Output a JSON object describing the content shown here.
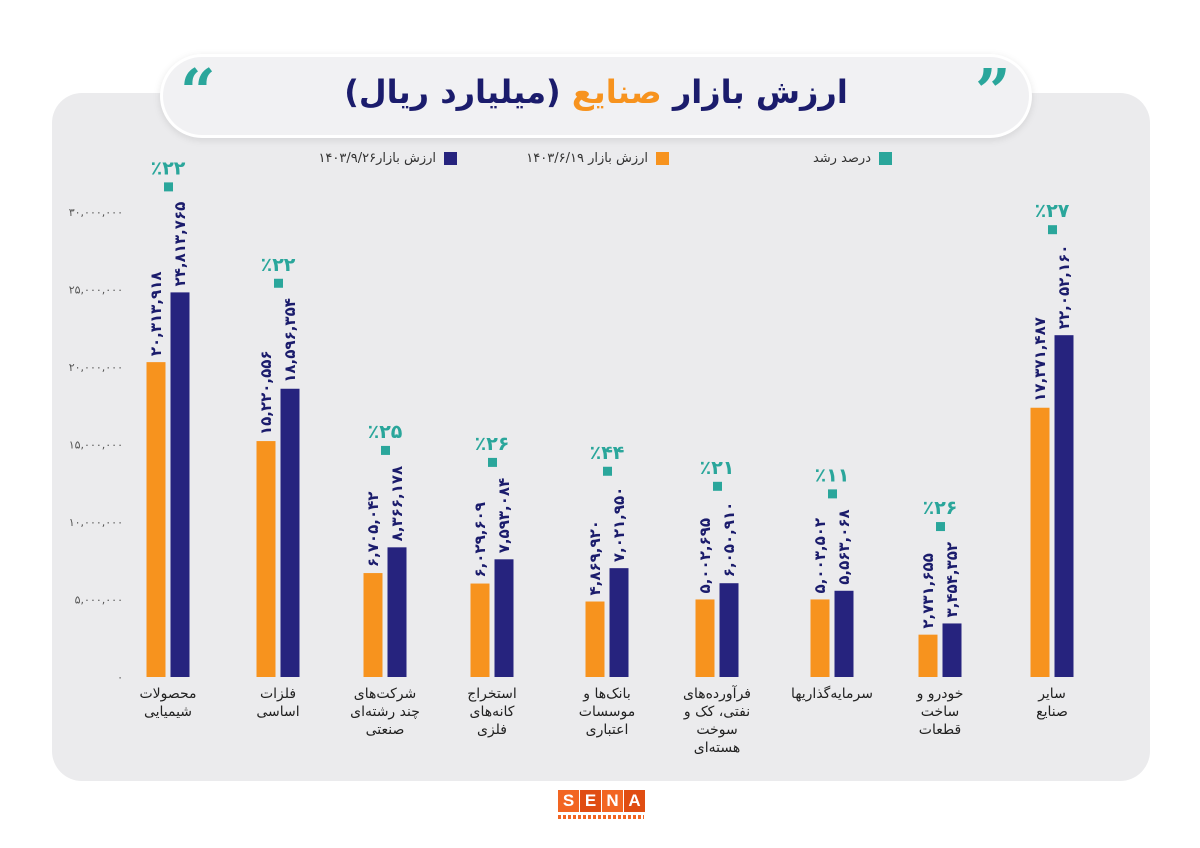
{
  "title": {
    "part1": "ارزش بازار",
    "part2": "صنایع",
    "part3": "(میلیارد ریال)"
  },
  "logo": {
    "text": "SENA",
    "letters": [
      "S",
      "E",
      "N",
      "A"
    ]
  },
  "colors": {
    "series1": "#f7931e",
    "series2": "#26237e",
    "growth": "#2aa69b",
    "title": "#1b1c6c"
  },
  "legend": {
    "growth": "درصد رشد",
    "series1": "ارزش بازار ۱۴۰۳/۶/۱۹",
    "series2": "ارزش بازار۱۴۰۳/۹/۲۶"
  },
  "chart_data": {
    "type": "bar",
    "ylim": [
      0,
      30000000
    ],
    "yticks": [
      0,
      5000000,
      10000000,
      15000000,
      20000000,
      25000000,
      30000000
    ],
    "ytick_labels": [
      "۰",
      "۵,۰۰۰,۰۰۰",
      "۱۰,۰۰۰,۰۰۰",
      "۱۵,۰۰۰,۰۰۰",
      "۲۰,۰۰۰,۰۰۰",
      "۲۵,۰۰۰,۰۰۰",
      "۳۰,۰۰۰,۰۰۰"
    ],
    "grid": false,
    "legend_position": "top",
    "categories": [
      [
        "محصولات",
        "شیمیایی"
      ],
      [
        "فلزات",
        "اساسی"
      ],
      [
        "شرکت‌های",
        "چند رشته‌ای",
        "صنعتی"
      ],
      [
        "استخراج",
        "کانه‌های",
        "فلزی"
      ],
      [
        "بانک‌ها و",
        "موسسات",
        "اعتباری"
      ],
      [
        "فرآورده‌های",
        "نفتی، کک و",
        "سوخت",
        "هسته‌ای"
      ],
      [
        "سرمایه‌گذاریها"
      ],
      [
        "خودرو و",
        "ساخت",
        "قطعات"
      ],
      [
        "سایر",
        "صنایع"
      ]
    ],
    "series": [
      {
        "name": "ارزش بازار ۱۴۰۳/۶/۱۹",
        "values": [
          20313918,
          15220556,
          6705042,
          6029609,
          4869920,
          5002695,
          5003502,
          2731655,
          17371487
        ],
        "labels": [
          "۲۰,۳۱۳,۹۱۸",
          "۱۵,۲۲۰,۵۵۶",
          "۶,۷۰۵,۰۴۲",
          "۶,۰۲۹,۶۰۹",
          "۴,۸۶۹,۹۲۰",
          "۵,۰۰۲,۶۹۵",
          "۵,۰۰۳,۵۰۲",
          "۲,۷۳۱,۶۵۵",
          "۱۷,۳۷۱,۴۸۷"
        ]
      },
      {
        "name": "ارزش بازار۱۴۰۳/۹/۲۶",
        "values": [
          24813765,
          18596354,
          8366178,
          7593084,
          7021950,
          6050910,
          5563068,
          3454352,
          22052160
        ],
        "labels": [
          "۲۴,۸۱۳,۷۶۵",
          "۱۸,۵۹۶,۳۵۴",
          "۸,۳۶۶,۱۷۸",
          "۷,۵۹۳,۰۸۴",
          "۷,۰۲۱,۹۵۰",
          "۶,۰۵۰,۹۱۰",
          "۵,۵۶۳,۰۶۸",
          "۳,۴۵۴,۳۵۲",
          "۲۲,۰۵۲,۱۶۰"
        ]
      }
    ],
    "growth": {
      "name": "درصد رشد",
      "values": [
        22,
        22,
        25,
        26,
        44,
        21,
        11,
        26,
        27
      ],
      "labels": [
        "٪۲۲",
        "٪۲۲",
        "٪۲۵",
        "٪۲۶",
        "٪۴۴",
        "٪۲۱",
        "٪۱۱",
        "٪۲۶",
        "٪۲۷"
      ]
    }
  }
}
